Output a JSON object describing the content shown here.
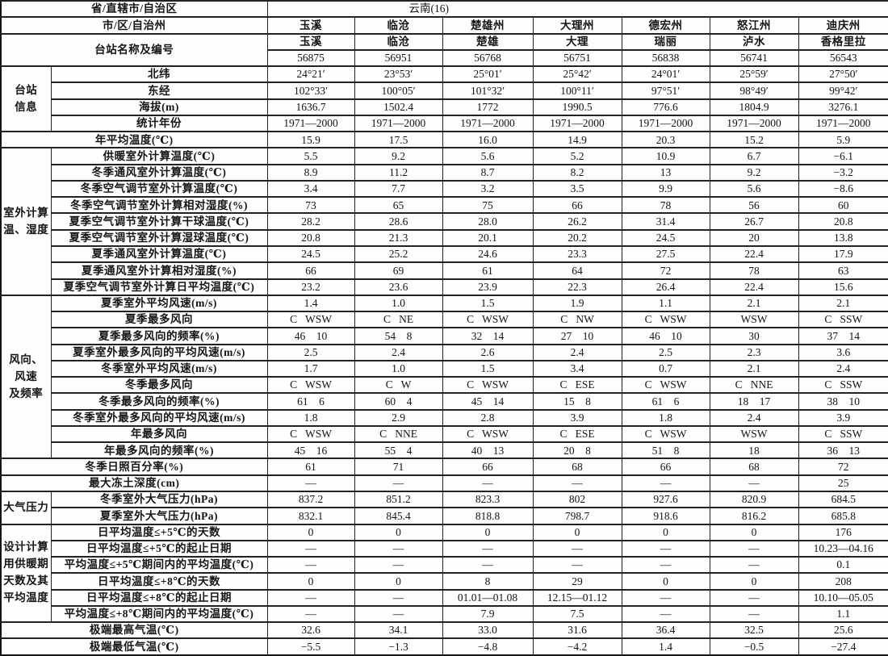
{
  "title_row": {
    "label": "省/直辖市/自治区",
    "value": "云南(16)"
  },
  "city_row": {
    "label": "市/区/自治州",
    "values": [
      "玉溪",
      "临沧",
      "楚雄州",
      "大理州",
      "德宏州",
      "怒江州",
      "迪庆州"
    ]
  },
  "station_row": {
    "label": "台站名称及编号",
    "names": [
      "玉溪",
      "临沧",
      "楚雄",
      "大理",
      "瑞丽",
      "泸水",
      "香格里拉"
    ],
    "ids": [
      "56875",
      "56951",
      "56768",
      "56751",
      "56838",
      "56741",
      "56543"
    ]
  },
  "groups": [
    {
      "name": "台站\n信息",
      "rows": [
        {
          "label": "北纬",
          "values": [
            "24°21′",
            "23°53′",
            "25°01′",
            "25°42′",
            "24°01′",
            "25°59′",
            "27°50′"
          ]
        },
        {
          "label": "东经",
          "values": [
            "102°33′",
            "100°05′",
            "101°32′",
            "100°11′",
            "97°51′",
            "98°49′",
            "99°42′"
          ]
        },
        {
          "label": "海拔(m)",
          "values": [
            "1636.7",
            "1502.4",
            "1772",
            "1990.5",
            "776.6",
            "1804.9",
            "3276.1"
          ]
        },
        {
          "label": "统计年份",
          "values": [
            "1971—2000",
            "1971—2000",
            "1971—2000",
            "1971—2000",
            "1971—2000",
            "1971—2000",
            "1971—2000"
          ]
        }
      ]
    },
    {
      "name": null,
      "rows": [
        {
          "label": "年平均温度(℃)",
          "values": [
            "15.9",
            "17.5",
            "16.0",
            "14.9",
            "20.3",
            "15.2",
            "5.9"
          ]
        }
      ]
    },
    {
      "name": "室外计算\n温、湿度",
      "rows": [
        {
          "label": "供暖室外计算温度(℃)",
          "values": [
            "5.5",
            "9.2",
            "5.6",
            "5.2",
            "10.9",
            "6.7",
            "−6.1"
          ]
        },
        {
          "label": "冬季通风室外计算温度(℃)",
          "values": [
            "8.9",
            "11.2",
            "8.7",
            "8.2",
            "13",
            "9.2",
            "−3.2"
          ]
        },
        {
          "label": "冬季空气调节室外计算温度(℃)",
          "values": [
            "3.4",
            "7.7",
            "3.2",
            "3.5",
            "9.9",
            "5.6",
            "−8.6"
          ]
        },
        {
          "label": "冬季空气调节室外计算相对湿度(%)",
          "values": [
            "73",
            "65",
            "75",
            "66",
            "78",
            "56",
            "60"
          ]
        },
        {
          "label": "夏季空气调节室外计算干球温度(℃)",
          "values": [
            "28.2",
            "28.6",
            "28.0",
            "26.2",
            "31.4",
            "26.7",
            "20.8"
          ]
        },
        {
          "label": "夏季空气调节室外计算湿球温度(℃)",
          "values": [
            "20.8",
            "21.3",
            "20.1",
            "20.2",
            "24.5",
            "20",
            "13.8"
          ]
        },
        {
          "label": "夏季通风室外计算温度(℃)",
          "values": [
            "24.5",
            "25.2",
            "24.6",
            "23.3",
            "27.5",
            "22.4",
            "17.9"
          ]
        },
        {
          "label": "夏季通风室外计算相对湿度(%)",
          "values": [
            "66",
            "69",
            "61",
            "64",
            "72",
            "78",
            "63"
          ]
        },
        {
          "label": "夏季空气调节室外计算日平均温度(℃)",
          "values": [
            "23.2",
            "23.6",
            "23.9",
            "22.3",
            "26.4",
            "22.4",
            "15.6"
          ]
        }
      ]
    },
    {
      "name": "风向、\n风速\n及频率",
      "rows": [
        {
          "label": "夏季室外平均风速(m/s)",
          "values": [
            "1.4",
            "1.0",
            "1.5",
            "1.9",
            "1.1",
            "2.1",
            "2.1"
          ]
        },
        {
          "label": "夏季最多风向",
          "values": [
            "C   WSW",
            "C   NE",
            "C   WSW",
            "C   NW",
            "C   WSW",
            "WSW",
            "C   SSW"
          ]
        },
        {
          "label": "夏季最多风向的频率(%)",
          "values": [
            "46    10",
            "54    8",
            "32    14",
            "27    10",
            "46    10",
            "30",
            "37    14"
          ]
        },
        {
          "label": "夏季室外最多风向的平均风速(m/s)",
          "values": [
            "2.5",
            "2.4",
            "2.6",
            "2.4",
            "2.5",
            "2.3",
            "3.6"
          ]
        },
        {
          "label": "冬季室外平均风速(m/s)",
          "values": [
            "1.7",
            "1.0",
            "1.5",
            "3.4",
            "0.7",
            "2.1",
            "2.4"
          ]
        },
        {
          "label": "冬季最多风向",
          "values": [
            "C   WSW",
            "C   W",
            "C   WSW",
            "C   ESE",
            "C   WSW",
            "C   NNE",
            "C   SSW"
          ]
        },
        {
          "label": "冬季最多风向的频率(%)",
          "values": [
            "61    6",
            "60    4",
            "45    14",
            "15    8",
            "61    6",
            "18    17",
            "38    10"
          ]
        },
        {
          "label": "冬季室外最多风向的平均风速(m/s)",
          "values": [
            "1.8",
            "2.9",
            "2.8",
            "3.9",
            "1.8",
            "2.4",
            "3.9"
          ]
        },
        {
          "label": "年最多风向",
          "values": [
            "C   WSW",
            "C   NNE",
            "C   WSW",
            "C   ESE",
            "C   WSW",
            "WSW",
            "C   SSW"
          ]
        },
        {
          "label": "年最多风向的频率(%)",
          "values": [
            "45    16",
            "55    4",
            "40    13",
            "20    8",
            "51    8",
            "18",
            "36    13"
          ]
        }
      ]
    },
    {
      "name": null,
      "rows": [
        {
          "label": "冬季日照百分率(%)",
          "values": [
            "61",
            "71",
            "66",
            "68",
            "66",
            "68",
            "72"
          ]
        },
        {
          "label": "最大冻土深度(cm)",
          "values": [
            "—",
            "—",
            "—",
            "—",
            "—",
            "—",
            "25"
          ]
        }
      ]
    },
    {
      "name": "大气压力",
      "rows": [
        {
          "label": "冬季室外大气压力(hPa)",
          "values": [
            "837.2",
            "851.2",
            "823.3",
            "802",
            "927.6",
            "820.9",
            "684.5"
          ]
        },
        {
          "label": "夏季室外大气压力(hPa)",
          "values": [
            "832.1",
            "845.4",
            "818.8",
            "798.7",
            "918.6",
            "816.2",
            "685.8"
          ]
        }
      ]
    },
    {
      "name": "设计计算\n用供暖期\n天数及其\n平均温度",
      "rows": [
        {
          "label": "日平均温度≤+5℃的天数",
          "values": [
            "0",
            "0",
            "0",
            "0",
            "0",
            "0",
            "176"
          ]
        },
        {
          "label": "日平均温度≤+5℃的起止日期",
          "values": [
            "—",
            "—",
            "—",
            "—",
            "—",
            "—",
            "10.23—04.16"
          ]
        },
        {
          "label": "平均温度≤+5℃期间内的平均温度(℃)",
          "values": [
            "—",
            "—",
            "—",
            "—",
            "—",
            "—",
            "0.1"
          ]
        },
        {
          "label": "日平均温度≤+8℃的天数",
          "values": [
            "0",
            "0",
            "8",
            "29",
            "0",
            "0",
            "208"
          ]
        },
        {
          "label": "日平均温度≤+8℃的起止日期",
          "values": [
            "—",
            "—",
            "01.01—01.08",
            "12.15—01.12",
            "—",
            "—",
            "10.10—05.05"
          ]
        },
        {
          "label": "平均温度≤+8℃期间内的平均温度(℃)",
          "values": [
            "—",
            "—",
            "7.9",
            "7.5",
            "—",
            "—",
            "1.1"
          ]
        }
      ]
    },
    {
      "name": null,
      "rows": [
        {
          "label": "极端最高气温(℃)",
          "values": [
            "32.6",
            "34.1",
            "33.0",
            "31.6",
            "36.4",
            "32.5",
            "25.6"
          ]
        },
        {
          "label": "极端最低气温(℃)",
          "values": [
            "−5.5",
            "−1.3",
            "−4.8",
            "−4.2",
            "1.4",
            "−0.5",
            "−27.4"
          ]
        }
      ]
    }
  ]
}
